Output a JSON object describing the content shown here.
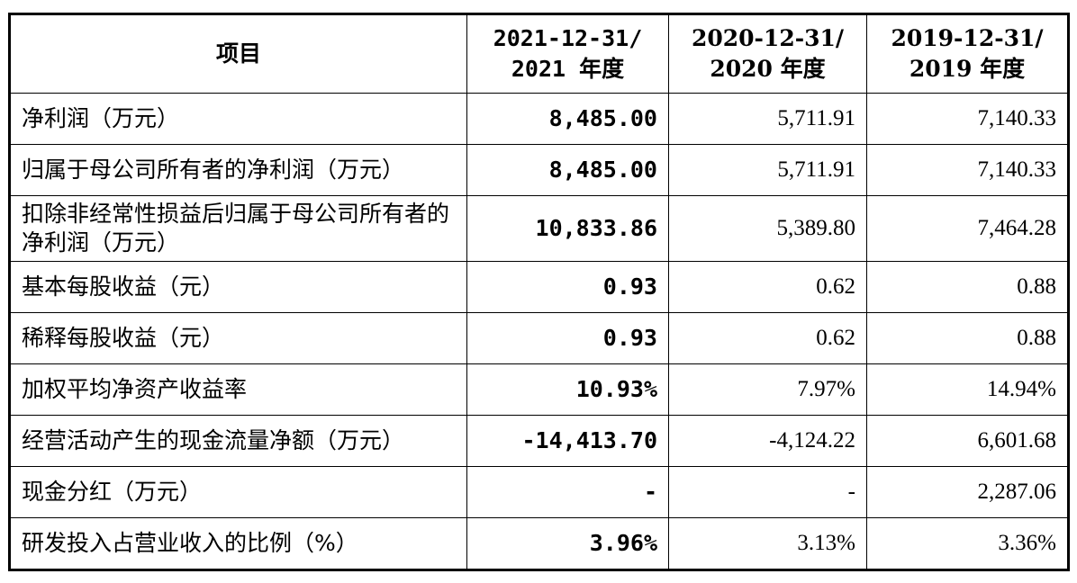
{
  "table": {
    "header": {
      "item": "项目",
      "col_2021": [
        "2021-12-31/",
        "2021 年度"
      ],
      "col_2020": [
        "2020-12-31/",
        "2020 年度"
      ],
      "col_2019": [
        "2019-12-31/",
        "2019 年度"
      ]
    },
    "rows": [
      {
        "label": "净利润（万元）",
        "v2021": "8,485.00",
        "v2020": "5,711.91",
        "v2019": "7,140.33"
      },
      {
        "label": "归属于母公司所有者的净利润（万元）",
        "v2021": "8,485.00",
        "v2020": "5,711.91",
        "v2019": "7,140.33"
      },
      {
        "label": "扣除非经常性损益后归属于母公司所有者的净利润（万元）",
        "v2021": "10,833.86",
        "v2020": "5,389.80",
        "v2019": "7,464.28"
      },
      {
        "label": "基本每股收益（元）",
        "v2021": "0.93",
        "v2020": "0.62",
        "v2019": "0.88"
      },
      {
        "label": "稀释每股收益（元）",
        "v2021": "0.93",
        "v2020": "0.62",
        "v2019": "0.88"
      },
      {
        "label": "加权平均净资产收益率",
        "v2021": "10.93%",
        "v2020": "7.97%",
        "v2019": "14.94%"
      },
      {
        "label": "经营活动产生的现金流量净额（万元）",
        "v2021": "-14,413.70",
        "v2020": "-4,124.22",
        "v2019": "6,601.68"
      },
      {
        "label": "现金分红（万元）",
        "v2021": "-",
        "v2020": "-",
        "v2019": "2,287.06"
      },
      {
        "label": "研发投入占营业收入的比例（%）",
        "v2021": "3.96%",
        "v2020": "3.13%",
        "v2019": "3.36%"
      }
    ]
  }
}
